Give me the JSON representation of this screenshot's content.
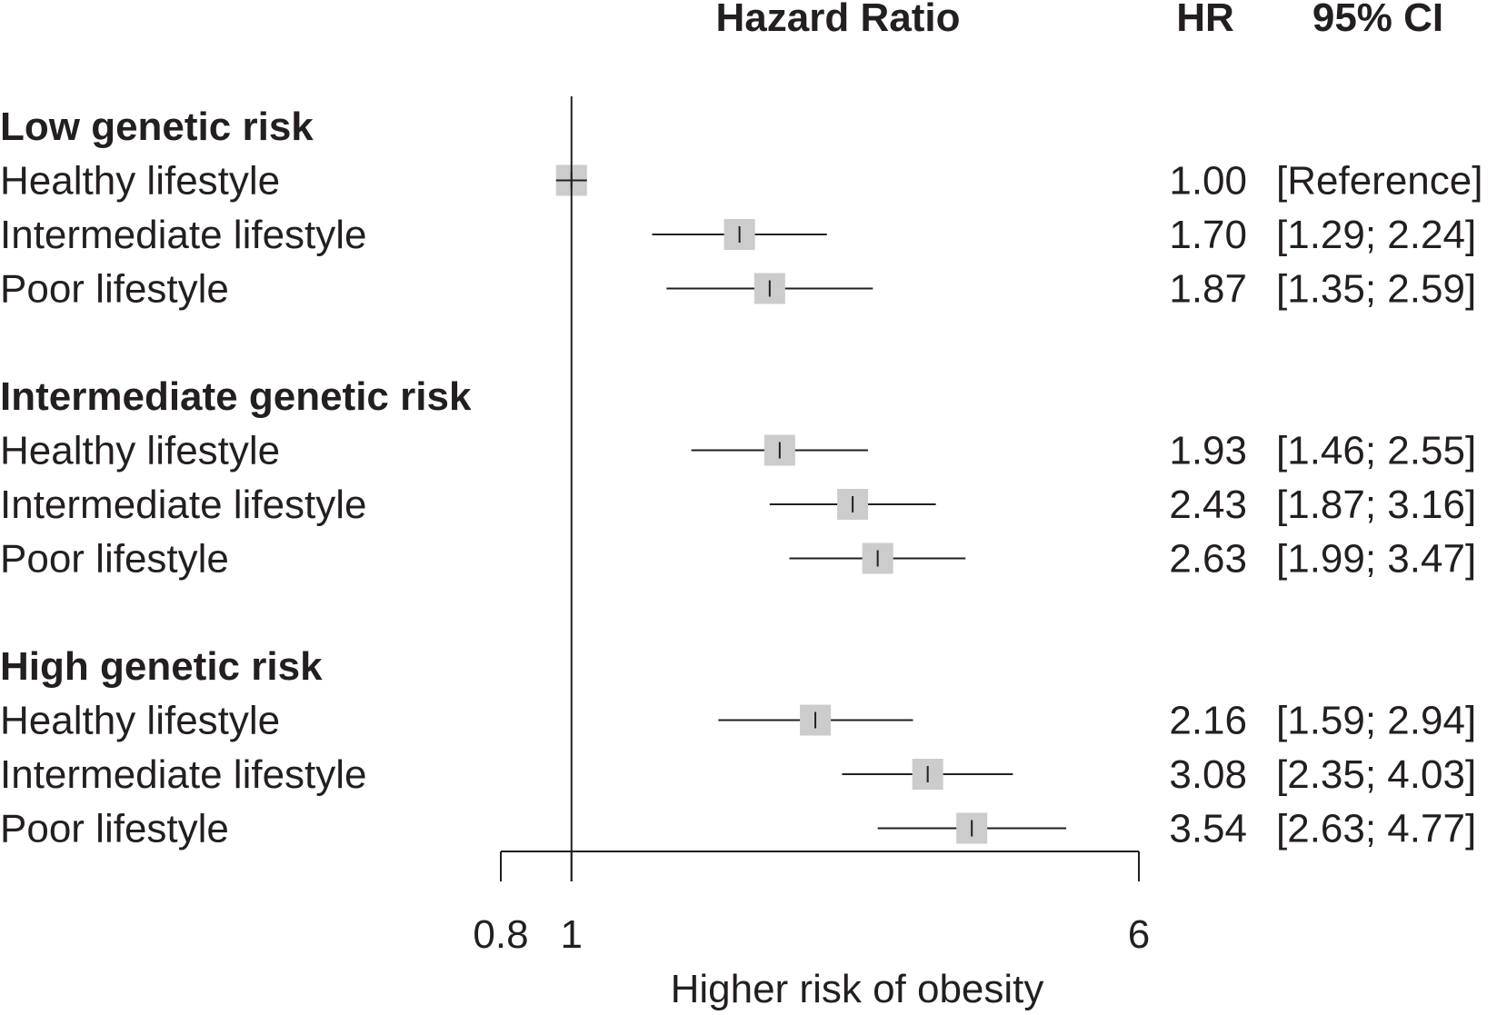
{
  "chart_data": {
    "type": "forest",
    "scale": "log",
    "headers": {
      "plot": "Hazard Ratio",
      "hr": "HR",
      "ci": "95% CI"
    },
    "xlabel": "Higher risk of obesity",
    "xlim": [
      0.8,
      6
    ],
    "reference_line": 1,
    "ticks": [
      {
        "value": 0.8,
        "label": "0.8"
      },
      {
        "value": 1,
        "label": "1"
      },
      {
        "value": 6,
        "label": "6"
      }
    ],
    "groups": [
      {
        "name": "Low genetic risk",
        "rows": [
          {
            "label": "Healthy lifestyle",
            "hr": 1.0,
            "lo": null,
            "hi": null,
            "hr_text": "1.00",
            "ci_text": "[Reference]"
          },
          {
            "label": "Intermediate lifestyle",
            "hr": 1.7,
            "lo": 1.29,
            "hi": 2.24,
            "hr_text": "1.70",
            "ci_text": "[1.29; 2.24]"
          },
          {
            "label": "Poor lifestyle",
            "hr": 1.87,
            "lo": 1.35,
            "hi": 2.59,
            "hr_text": "1.87",
            "ci_text": "[1.35; 2.59]"
          }
        ]
      },
      {
        "name": "Intermediate genetic risk",
        "rows": [
          {
            "label": "Healthy lifestyle",
            "hr": 1.93,
            "lo": 1.46,
            "hi": 2.55,
            "hr_text": "1.93",
            "ci_text": "[1.46; 2.55]"
          },
          {
            "label": "Intermediate lifestyle",
            "hr": 2.43,
            "lo": 1.87,
            "hi": 3.16,
            "hr_text": "2.43",
            "ci_text": "[1.87; 3.16]"
          },
          {
            "label": "Poor lifestyle",
            "hr": 2.63,
            "lo": 1.99,
            "hi": 3.47,
            "hr_text": "2.63",
            "ci_text": "[1.99; 3.47]"
          }
        ]
      },
      {
        "name": "High genetic risk",
        "rows": [
          {
            "label": "Healthy lifestyle",
            "hr": 2.16,
            "lo": 1.59,
            "hi": 2.94,
            "hr_text": "2.16",
            "ci_text": "[1.59; 2.94]"
          },
          {
            "label": "Intermediate lifestyle",
            "hr": 3.08,
            "lo": 2.35,
            "hi": 4.03,
            "hr_text": "3.08",
            "ci_text": "[2.35; 4.03]"
          },
          {
            "label": "Poor lifestyle",
            "hr": 3.54,
            "lo": 2.63,
            "hi": 4.77,
            "hr_text": "3.54",
            "ci_text": "[2.63; 4.77]"
          }
        ]
      }
    ],
    "colors": {
      "box": "#cccccc",
      "ink": "#231f20"
    }
  }
}
